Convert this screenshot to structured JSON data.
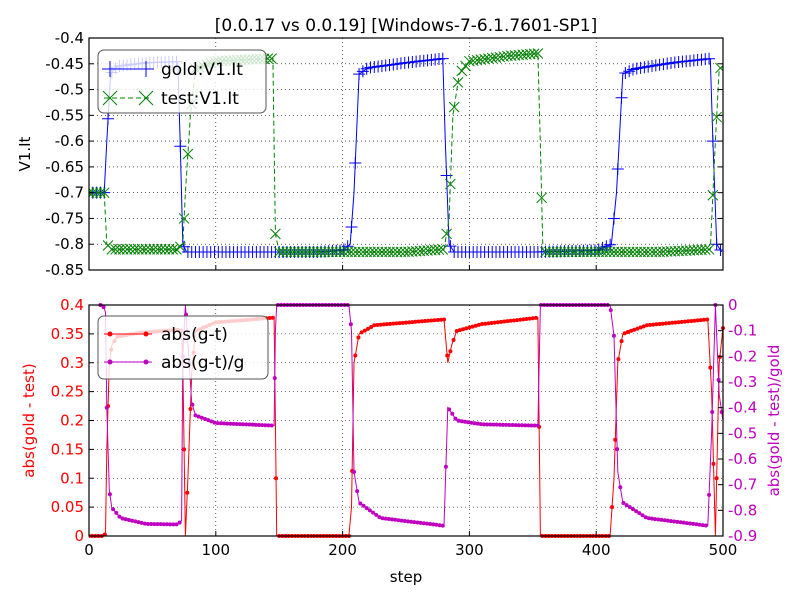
{
  "chart_data": [
    {
      "type": "line",
      "title": "[0.0.17 vs 0.0.19] [Windows-7-6.1.7601-SP1]",
      "xlabel": "",
      "ylabel": "V1.It",
      "xlim": [
        0,
        500
      ],
      "ylim": [
        -0.85,
        -0.4
      ],
      "grid": true,
      "legend_position": "top-left",
      "yticks": [
        "-0.4",
        "-0.45",
        "-0.5",
        "-0.55",
        "-0.6",
        "-0.65",
        "-0.7",
        "-0.75",
        "-0.8",
        "-0.85"
      ],
      "series": [
        {
          "name": "gold:V1.It",
          "color": "#0000ff",
          "marker": "+",
          "points": [
            [
              0,
              -0.7
            ],
            [
              12,
              -0.7
            ],
            [
              14,
              -0.6
            ],
            [
              17,
              -0.47
            ],
            [
              22,
              -0.455
            ],
            [
              45,
              -0.448
            ],
            [
              70,
              -0.446
            ],
            [
              72,
              -0.61
            ],
            [
              74,
              -0.8
            ],
            [
              77,
              -0.815
            ],
            [
              100,
              -0.815
            ],
            [
              140,
              -0.815
            ],
            [
              180,
              -0.815
            ],
            [
              200,
              -0.812
            ],
            [
              206,
              -0.8
            ],
            [
              209,
              -0.7
            ],
            [
              213,
              -0.47
            ],
            [
              220,
              -0.458
            ],
            [
              250,
              -0.448
            ],
            [
              279,
              -0.44
            ],
            [
              281,
              -0.6
            ],
            [
              284,
              -0.8
            ],
            [
              288,
              -0.815
            ],
            [
              320,
              -0.815
            ],
            [
              355,
              -0.815
            ],
            [
              400,
              -0.812
            ],
            [
              412,
              -0.8
            ],
            [
              416,
              -0.7
            ],
            [
              421,
              -0.47
            ],
            [
              430,
              -0.46
            ],
            [
              460,
              -0.448
            ],
            [
              490,
              -0.44
            ],
            [
              492,
              -0.6
            ],
            [
              495,
              -0.8
            ],
            [
              499,
              -0.815
            ]
          ]
        },
        {
          "name": "test:V1.It",
          "color": "#008000",
          "marker": "x",
          "points": [
            [
              0,
              -0.7
            ],
            [
              12,
              -0.7
            ],
            [
              14,
              -0.8
            ],
            [
              18,
              -0.81
            ],
            [
              40,
              -0.81
            ],
            [
              70,
              -0.81
            ],
            [
              74,
              -0.8
            ],
            [
              76,
              -0.7
            ],
            [
              80,
              -0.55
            ],
            [
              84,
              -0.46
            ],
            [
              100,
              -0.445
            ],
            [
              140,
              -0.44
            ],
            [
              145,
              -0.44
            ],
            [
              147,
              -0.78
            ],
            [
              150,
              -0.815
            ],
            [
              200,
              -0.815
            ],
            [
              250,
              -0.815
            ],
            [
              280,
              -0.81
            ],
            [
              284,
              -0.75
            ],
            [
              287,
              -0.55
            ],
            [
              292,
              -0.47
            ],
            [
              300,
              -0.445
            ],
            [
              330,
              -0.435
            ],
            [
              354,
              -0.43
            ],
            [
              356,
              -0.61
            ],
            [
              358,
              -0.81
            ],
            [
              360,
              -0.815
            ],
            [
              400,
              -0.815
            ],
            [
              450,
              -0.815
            ],
            [
              490,
              -0.81
            ],
            [
              494,
              -0.6
            ],
            [
              497,
              -0.46
            ],
            [
              500,
              -0.455
            ]
          ]
        }
      ]
    },
    {
      "type": "line",
      "title": "",
      "xlabel": "step",
      "ylabel": "abs(gold - test)",
      "y2label": "abs(gold - test)/gold",
      "xlim": [
        0,
        500
      ],
      "ylim": [
        0,
        0.4
      ],
      "y2lim": [
        -0.9,
        0
      ],
      "grid": true,
      "legend_position": "top-left",
      "xticks": [
        "0",
        "100",
        "200",
        "300",
        "400",
        "500"
      ],
      "yticks": [
        "0.4",
        "0.35",
        "0.3",
        "0.25",
        "0.2",
        "0.15",
        "0.1",
        "0.05",
        "0"
      ],
      "y2ticks": [
        "0",
        "-0.1",
        "-0.2",
        "-0.3",
        "-0.4",
        "-0.5",
        "-0.6",
        "-0.7",
        "-0.8",
        "-0.9"
      ],
      "series": [
        {
          "name": "abs(g-t)",
          "color": "#ff0000",
          "axis": "left",
          "points": [
            [
              0,
              0.0
            ],
            [
              12,
              0.0
            ],
            [
              13,
              0.005
            ],
            [
              14,
              0.15
            ],
            [
              16,
              0.3
            ],
            [
              18,
              0.33
            ],
            [
              22,
              0.345
            ],
            [
              40,
              0.352
            ],
            [
              70,
              0.357
            ],
            [
              73,
              0.355
            ],
            [
              74,
              0.3
            ],
            [
              76,
              0.0
            ],
            [
              78,
              0.1
            ],
            [
              81,
              0.28
            ],
            [
              84,
              0.355
            ],
            [
              100,
              0.37
            ],
            [
              146,
              0.378
            ],
            [
              147,
              0.2
            ],
            [
              148,
              0.0
            ],
            [
              205,
              0.0
            ],
            [
              207,
              0.05
            ],
            [
              209,
              0.3
            ],
            [
              213,
              0.35
            ],
            [
              225,
              0.365
            ],
            [
              280,
              0.375
            ],
            [
              283,
              0.3
            ],
            [
              286,
              0.33
            ],
            [
              290,
              0.355
            ],
            [
              310,
              0.367
            ],
            [
              354,
              0.378
            ],
            [
              356,
              0.0
            ],
            [
              411,
              0.0
            ],
            [
              414,
              0.1
            ],
            [
              417,
              0.3
            ],
            [
              421,
              0.35
            ],
            [
              440,
              0.365
            ],
            [
              488,
              0.375
            ],
            [
              491,
              0.25
            ],
            [
              494,
              0.0
            ],
            [
              497,
              0.3
            ],
            [
              500,
              0.36
            ]
          ]
        },
        {
          "name": "abs(g-t)/g",
          "color": "#c000c0",
          "axis": "right",
          "points": [
            [
              9,
              0.0
            ],
            [
              12,
              -0.01
            ],
            [
              13,
              -0.03
            ],
            [
              14,
              -0.4
            ],
            [
              16,
              -0.72
            ],
            [
              18,
              -0.79
            ],
            [
              25,
              -0.83
            ],
            [
              45,
              -0.853
            ],
            [
              70,
              -0.855
            ],
            [
              73,
              -0.84
            ],
            [
              74,
              -0.2
            ],
            [
              76,
              0.0
            ],
            [
              78,
              -0.15
            ],
            [
              81,
              -0.38
            ],
            [
              84,
              -0.43
            ],
            [
              100,
              -0.46
            ],
            [
              146,
              -0.47
            ],
            [
              147,
              -0.1
            ],
            [
              148,
              0.0
            ],
            [
              205,
              0.0
            ],
            [
              207,
              -0.1
            ],
            [
              209,
              -0.65
            ],
            [
              213,
              -0.77
            ],
            [
              230,
              -0.83
            ],
            [
              280,
              -0.86
            ],
            [
              283,
              -0.4
            ],
            [
              286,
              -0.42
            ],
            [
              290,
              -0.45
            ],
            [
              310,
              -0.465
            ],
            [
              354,
              -0.47
            ],
            [
              356,
              0.0
            ],
            [
              411,
              0.0
            ],
            [
              414,
              -0.12
            ],
            [
              417,
              -0.65
            ],
            [
              421,
              -0.77
            ],
            [
              440,
              -0.83
            ],
            [
              488,
              -0.86
            ],
            [
              491,
              -0.5
            ],
            [
              494,
              0.0
            ],
            [
              497,
              -0.35
            ],
            [
              500,
              -0.45
            ]
          ]
        }
      ]
    }
  ]
}
